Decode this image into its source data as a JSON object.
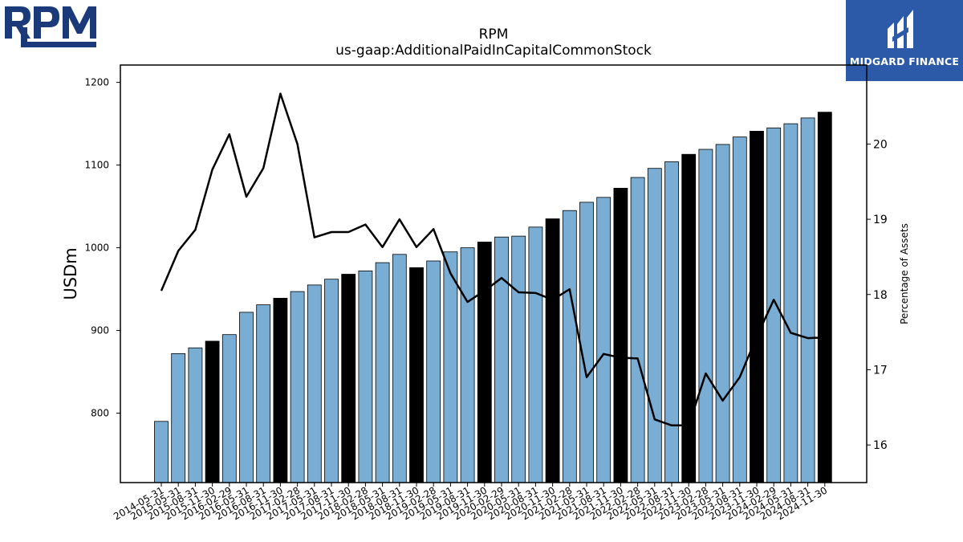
{
  "logos": {
    "left_text": "RPM",
    "right_text": "MIDGARD FINANCE"
  },
  "chart_data": {
    "type": "bar",
    "title": "RPM",
    "subtitle": "us-gaap:AdditionalPaidInCapitalCommonStock",
    "ylabel": "USDm",
    "y2label": "Percentage of Assets",
    "ylim": [
      716,
      1221
    ],
    "y2lim": [
      15.5,
      21.05
    ],
    "yticks": [
      800,
      900,
      1000,
      1100,
      1200
    ],
    "y2ticks": [
      16,
      17,
      18,
      19,
      20
    ],
    "colors": {
      "bar": "#7aadd4",
      "bar_highlight": "#000000",
      "line": "#000000"
    },
    "categories": [
      "2014-05-31",
      "2015-05-31",
      "2015-08-31",
      "2015-11-30",
      "2016-02-29",
      "2016-05-31",
      "2016-08-31",
      "2016-11-30",
      "2017-02-28",
      "2017-05-31",
      "2017-08-31",
      "2017-11-30",
      "2018-02-28",
      "2018-05-31",
      "2018-08-31",
      "2018-11-30",
      "2019-02-28",
      "2019-05-31",
      "2019-08-31",
      "2019-11-30",
      "2020-02-29",
      "2020-05-31",
      "2020-08-31",
      "2020-11-30",
      "2021-02-28",
      "2021-05-31",
      "2021-08-31",
      "2021-11-30",
      "2022-02-28",
      "2022-05-31",
      "2022-08-31",
      "2022-11-30",
      "2023-02-28",
      "2023-05-31",
      "2023-08-31",
      "2023-11-30",
      "2024-02-29",
      "2024-05-31",
      "2024-08-31",
      "2024-11-30"
    ],
    "highlight": [
      false,
      false,
      false,
      true,
      false,
      false,
      false,
      true,
      false,
      false,
      false,
      true,
      false,
      false,
      false,
      true,
      false,
      false,
      false,
      true,
      false,
      false,
      false,
      true,
      false,
      false,
      false,
      true,
      false,
      false,
      false,
      true,
      false,
      false,
      false,
      true,
      false,
      false,
      false,
      true
    ],
    "series": [
      {
        "values": [
          790,
          872,
          879,
          887,
          895,
          922,
          931,
          939,
          947,
          955,
          962,
          968,
          972,
          982,
          992,
          976,
          984,
          995,
          1000,
          1007,
          1013,
          1014,
          1025,
          1035,
          1045,
          1055,
          1061,
          1072,
          1085,
          1096,
          1104,
          1113,
          1119,
          1125,
          1134,
          1141,
          1145,
          1150,
          1157,
          1164
        ]
      },
      {
        "axis": "right",
        "values": [
          18.05,
          18.58,
          18.86,
          19.66,
          20.13,
          19.3,
          19.68,
          20.67,
          20.0,
          18.76,
          18.83,
          18.83,
          18.93,
          18.63,
          19.0,
          18.63,
          18.87,
          18.28,
          17.9,
          18.05,
          18.22,
          18.03,
          18.02,
          17.93,
          18.07,
          16.9,
          17.21,
          17.16,
          17.15,
          16.34,
          16.26,
          16.26,
          16.95,
          16.59,
          16.9,
          17.44,
          17.93,
          17.49,
          17.42,
          17.43
        ]
      }
    ]
  }
}
